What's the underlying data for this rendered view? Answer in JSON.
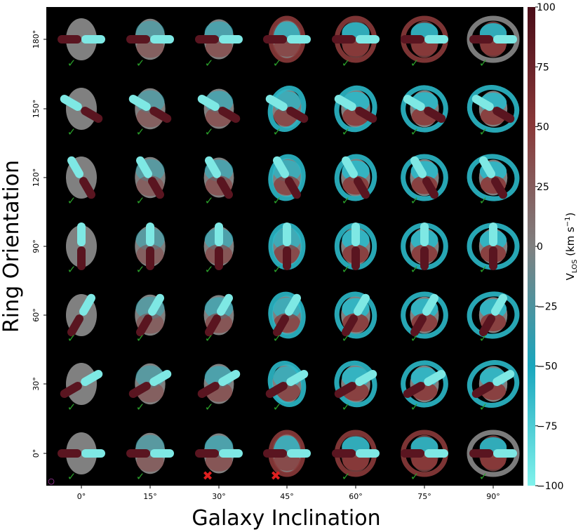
{
  "chart_data": {
    "type": "heatmap",
    "description_free": true,
    "xlabel": "Galaxy Inclination",
    "ylabel": "Ring Orientation",
    "x_ticks": [
      "0°",
      "15°",
      "30°",
      "45°",
      "60°",
      "75°",
      "90°"
    ],
    "y_ticks": [
      "0°",
      "30°",
      "60°",
      "90°",
      "120°",
      "150°",
      "180°"
    ],
    "x_values_deg": [
      0,
      15,
      30,
      45,
      60,
      75,
      90
    ],
    "y_values_deg": [
      0,
      30,
      60,
      90,
      120,
      150,
      180
    ],
    "colorbar": {
      "label_main": "V",
      "label_sub": "LOS",
      "label_units": " (km s",
      "label_exp": "−1",
      "label_close": ")",
      "range": [
        -100,
        100
      ],
      "ticks": [
        "100",
        "75",
        "50",
        "25",
        "0",
        "−25",
        "−50",
        "−75",
        "−100"
      ],
      "tick_values": [
        100,
        75,
        50,
        25,
        0,
        -25,
        -50,
        -75,
        -100
      ],
      "colors": [
        "#80f2ec",
        "#1aa6bd",
        "#808080",
        "#8a3a3a",
        "#4a0d18"
      ]
    },
    "panel_status": {
      "legend": {
        "check": "✓",
        "cross": "✖"
      },
      "rows_bottom_to_top": [
        [
          "check",
          "check",
          "cross",
          "cross",
          "check",
          "check",
          "check"
        ],
        [
          "check",
          "check",
          "check",
          "check",
          "check",
          "check",
          "check"
        ],
        [
          "check",
          "check",
          "check",
          "check",
          "check",
          "check",
          "check"
        ],
        [
          "check",
          "check",
          "check",
          "check",
          "check",
          "check",
          "check"
        ],
        [
          "check",
          "check",
          "check",
          "check",
          "check",
          "check",
          "check"
        ],
        [
          "check",
          "check",
          "check",
          "check",
          "check",
          "check",
          "check"
        ],
        [
          "check",
          "check",
          "check",
          "check",
          "check",
          "check",
          "check"
        ]
      ]
    },
    "marker_symbol": "○",
    "colors": {
      "background": "#000000",
      "check": "#2aa02a",
      "cross": "#e02020",
      "marker": "#c040c0"
    }
  }
}
